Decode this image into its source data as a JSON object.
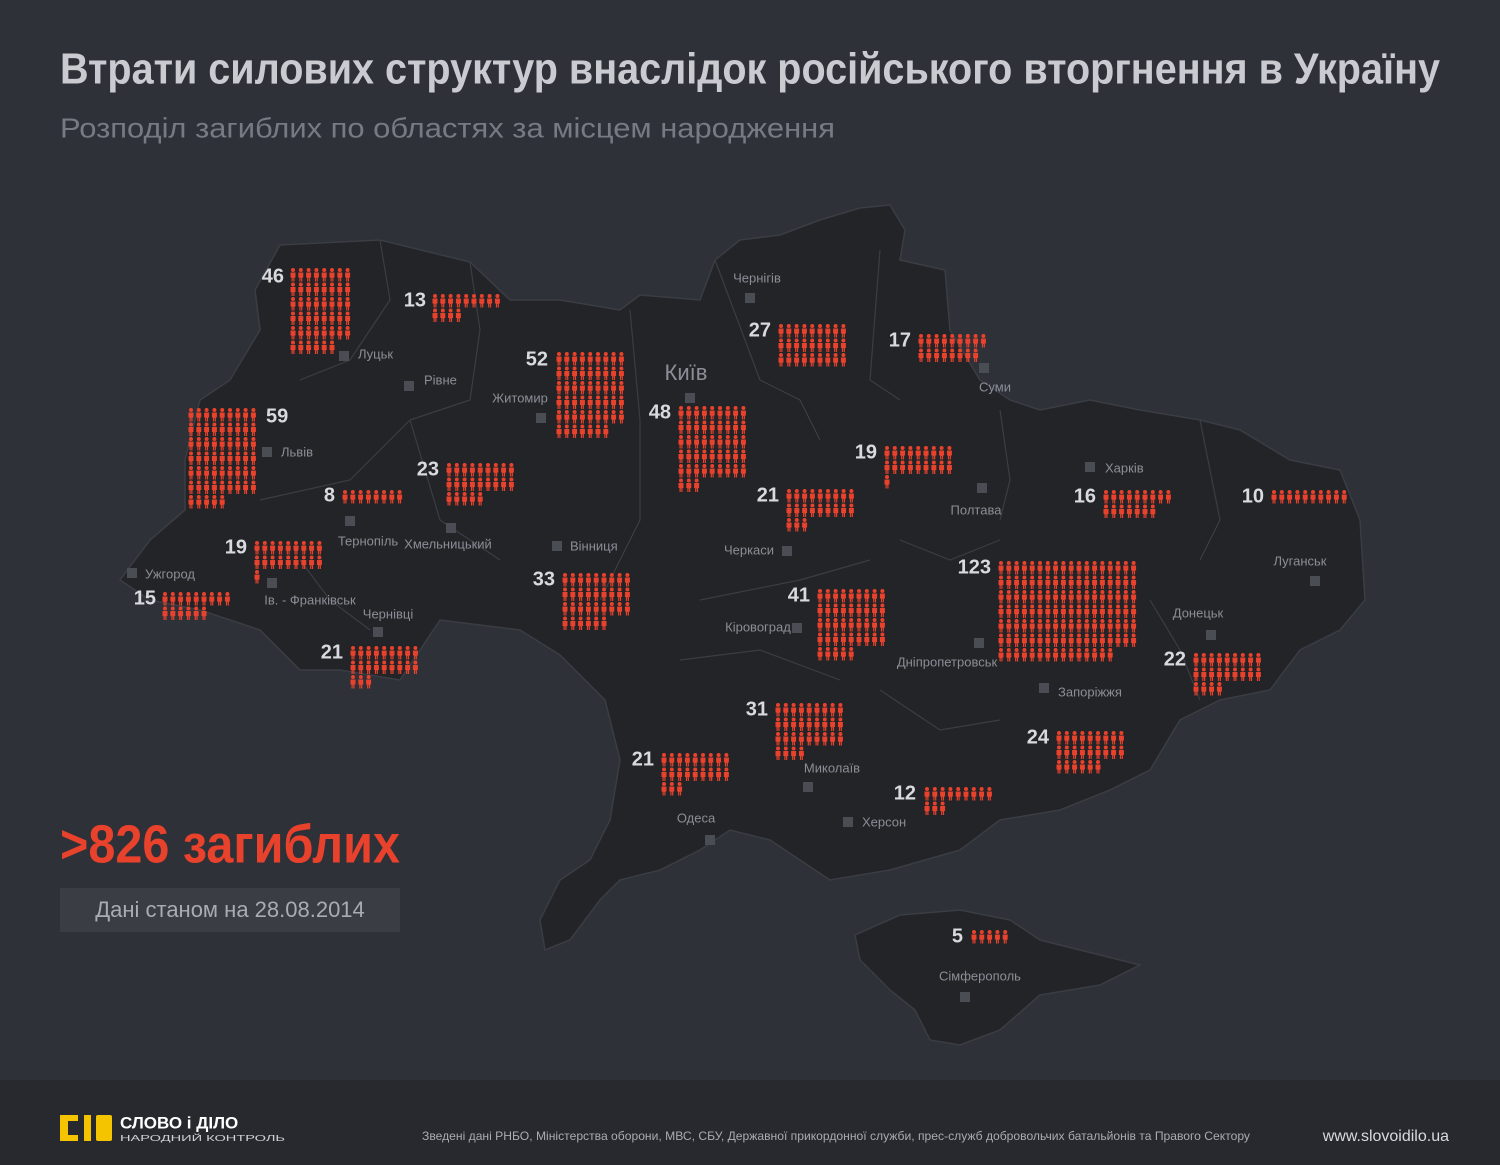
{
  "header": {
    "title": "Втрати силових структур внаслідок російського вторгнення в Україну",
    "subtitle": "Розподіл загиблих по областях за місцем народження"
  },
  "regions": [
    {
      "city": "Луцьк",
      "value": 46
    },
    {
      "city": "Рівне",
      "value": 13
    },
    {
      "city": "Житомир",
      "value": 52
    },
    {
      "city": "Київ",
      "value": 48
    },
    {
      "city": "Чернігів",
      "value": 27
    },
    {
      "city": "Суми",
      "value": 17
    },
    {
      "city": "Львів",
      "value": 59
    },
    {
      "city": "Тернопіль",
      "value": 8
    },
    {
      "city": "Хмельницький",
      "value": 23
    },
    {
      "city": "Полтава",
      "value": 19
    },
    {
      "city": "Черкаси",
      "value": 21
    },
    {
      "city": "Харків",
      "value": 16
    },
    {
      "city": "Луганськ",
      "value": 10
    },
    {
      "city": "Ів. - Франківськ",
      "value": 19
    },
    {
      "city": "Ужгород",
      "value": 15
    },
    {
      "city": "Вінниця",
      "value": 33
    },
    {
      "city": "Кіровоград",
      "value": 41
    },
    {
      "city": "Дніпропетровськ",
      "value": 123
    },
    {
      "city": "Чернівці",
      "value": 21
    },
    {
      "city": "Донецьк",
      "value": 22
    },
    {
      "city": "Миколаїв",
      "value": 31
    },
    {
      "city": "Запоріжжя",
      "value": 24
    },
    {
      "city": "Одеса",
      "value": 21
    },
    {
      "city": "Херсон",
      "value": 12
    },
    {
      "city": "Сімферополь",
      "value": 5
    }
  ],
  "total": ">826 загиблих",
  "date": "Дані станом на 28.08.2014",
  "footer": {
    "brand": "СЛОВО і ДІЛО",
    "brand_sub": "НАРОДНИЙ КОНТРОЛЬ",
    "source": "Зведені дані  РНБО, Міністерства оборони, МВС, СБУ, Державної прикордонної служби, прес-служб добровольчих батальйонів та Правого Сектору",
    "url": "www.slovoidilo.ua"
  }
}
